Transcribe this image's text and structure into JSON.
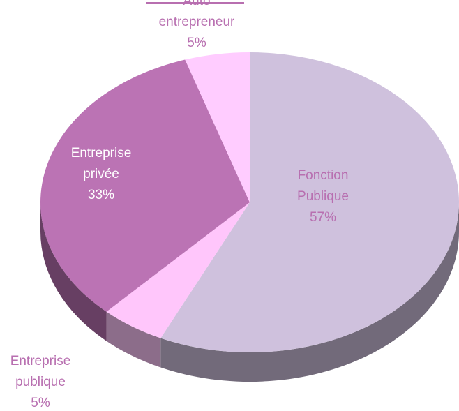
{
  "chart_data": {
    "type": "pie",
    "categories": [
      "Fonction Publique",
      "Entreprise publique",
      "Entreprise privée",
      "Auto entrepreneur"
    ],
    "values": [
      57,
      5,
      33,
      5
    ],
    "value_labels": [
      "57%",
      "5%",
      "33%",
      "5%"
    ],
    "colors": [
      "#cfc1dd",
      "#ffc6fb",
      "#bb73b4",
      "#ffccff"
    ]
  }
}
